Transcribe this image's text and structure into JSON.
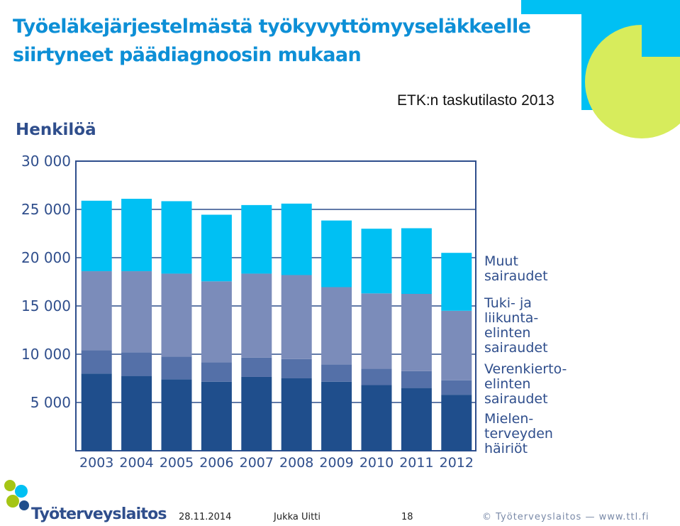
{
  "header": {
    "title_line1": "Työeläkejärjestelmästä työkyvyttömyyseläkkeelle",
    "title_line2": "siirtyneet päädiagnoosin mukaan",
    "source": "ETK:n taskutilasto 2013",
    "unit_label": "Henkilöä"
  },
  "chart_data": {
    "type": "bar",
    "stacked": true,
    "categories": [
      "2003",
      "2004",
      "2005",
      "2006",
      "2007",
      "2008",
      "2009",
      "2010",
      "2011",
      "2012"
    ],
    "series": [
      {
        "name": "Mielenterveyden häiriöt",
        "color": "#1f4e8c",
        "values": [
          8000,
          7750,
          7400,
          7150,
          7650,
          7500,
          7150,
          6800,
          6500,
          5800
        ]
      },
      {
        "name": "Verenkiertoelinten sairaudet",
        "color": "#5470a8",
        "values": [
          2400,
          2450,
          2350,
          2000,
          2000,
          2000,
          1800,
          1700,
          1750,
          1500
        ]
      },
      {
        "name": "Tuki- ja liikuntaelinten sairaudet",
        "color": "#7b8cba",
        "values": [
          8200,
          8400,
          8600,
          8400,
          8700,
          8700,
          8000,
          7800,
          8000,
          7200
        ]
      },
      {
        "name": "Muut sairaudet",
        "color": "#00c0f3",
        "values": [
          7300,
          7500,
          7500,
          6900,
          7100,
          7400,
          6900,
          6700,
          6800,
          6000
        ]
      }
    ],
    "yticks": [
      "5 000",
      "10 000",
      "15 000",
      "20 000",
      "25 000",
      "30 000"
    ],
    "ylim": [
      0,
      30000
    ],
    "grid": true
  },
  "legend": {
    "muut": "Muut\nsairaudet",
    "tuki": "Tuki- ja\nliikunta-\nelinten\nsairaudet",
    "veren": "Verenkierto-\nelinten\nsairaudet",
    "mielen": "Mielen-\nterveyden\nhäiriöt"
  },
  "footer": {
    "logo_text": "Työterveyslaitos",
    "date": "28.11.2014",
    "author": "Jukka Uitti",
    "page": "18",
    "copyright": "© Työterveyslaitos  —  www.ttl.fi"
  },
  "colors": {
    "title": "#0d8fd6",
    "label": "#2f4e8c",
    "logo_green": "#a5c515",
    "logo_blue": "#00c0f3"
  }
}
